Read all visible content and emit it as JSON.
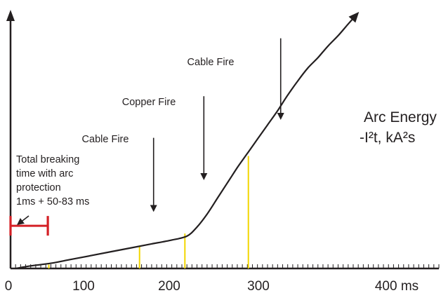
{
  "chart_data": {
    "type": "line",
    "title": "",
    "xlabel": "",
    "ylabel": "Arc Energy -I²t, kA²s",
    "ylabel_lines": [
      "Arc Energy",
      "-I²t, kA²s"
    ],
    "xlim": [
      0,
      425
    ],
    "ylim": [
      0,
      100
    ],
    "x_ticks": [
      {
        "value": 0,
        "label": "0"
      },
      {
        "value": 100,
        "label": "100"
      },
      {
        "value": 200,
        "label": "200"
      },
      {
        "value": 300,
        "label": "300"
      },
      {
        "value": 400,
        "label": "400 ms"
      }
    ],
    "x_minor_tick_step": 5,
    "grid": false,
    "series": [
      {
        "x": [
          5,
          20,
          40,
          60,
          80,
          100,
          120,
          140,
          160,
          175,
          185,
          195,
          205,
          215,
          225,
          235,
          245,
          255,
          265,
          275,
          285,
          295,
          305,
          315,
          325,
          335,
          343
        ],
        "y": [
          0,
          1,
          2,
          3.5,
          5,
          6.5,
          8,
          9.5,
          11,
          12.5,
          16,
          21,
          27,
          33,
          39,
          44.5,
          50,
          55.5,
          61,
          67,
          72.5,
          77.5,
          81.5,
          86,
          90,
          94.5,
          98
        ],
        "color": "#231f20"
      }
    ],
    "markers": [
      {
        "x": 38,
        "y": 1.5,
        "color": "#f2d600"
      },
      {
        "x": 128,
        "y": 8.8,
        "color": "#f2d600"
      },
      {
        "x": 173,
        "y": 13.5,
        "color": "#f2d600"
      },
      {
        "x": 236,
        "y": 43.5,
        "color": "#f2d600"
      }
    ],
    "annotations": [
      {
        "lines": [
          "Cable Fire"
        ],
        "x": 128,
        "arrow_top": 50.5,
        "arrow_bottom": 23.2
      },
      {
        "lines": [
          "Copper Fire"
        ],
        "x": 173,
        "arrow_top": 66.6,
        "arrow_bottom": 35.5
      },
      {
        "lines": [
          "Cable Fire"
        ],
        "x": 236,
        "arrow_top": 89,
        "arrow_bottom": 58.8
      },
      {
        "lines": [
          "Total breaking",
          "time with arc",
          "protection",
          "1ms + 50-83 ms"
        ]
      }
    ],
    "protection_bar": {
      "x_start": 0,
      "x_end": 37,
      "y": 16.5,
      "color": "#d42026"
    }
  }
}
